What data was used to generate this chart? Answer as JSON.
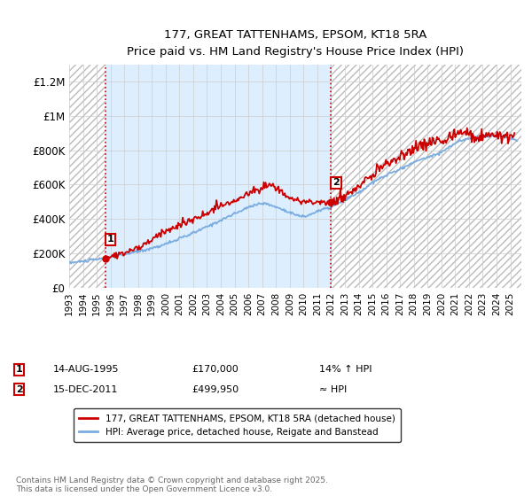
{
  "title_line1": "177, GREAT TATTENHAMS, EPSOM, KT18 5RA",
  "title_line2": "Price paid vs. HM Land Registry's House Price Index (HPI)",
  "ylabel_ticks": [
    "£0",
    "£200K",
    "£400K",
    "£600K",
    "£800K",
    "£1M",
    "£1.2M"
  ],
  "ytick_values": [
    0,
    200000,
    400000,
    600000,
    800000,
    1000000,
    1200000
  ],
  "ylim": [
    0,
    1300000
  ],
  "xlim_start": 1993.0,
  "xlim_end": 2025.8,
  "x_tick_years": [
    1993,
    1994,
    1995,
    1996,
    1997,
    1998,
    1999,
    2000,
    2001,
    2002,
    2003,
    2004,
    2005,
    2006,
    2007,
    2008,
    2009,
    2010,
    2011,
    2012,
    2013,
    2014,
    2015,
    2016,
    2017,
    2018,
    2019,
    2020,
    2021,
    2022,
    2023,
    2024,
    2025
  ],
  "purchase1_x": 1995.617,
  "purchase1_y": 170000,
  "purchase2_x": 2011.958,
  "purchase2_y": 499950,
  "hpi_color": "#7aade0",
  "price_color": "#cc0000",
  "vline_color": "#cc0000",
  "fill_color": "#ddeeff",
  "background_color": "#ffffff",
  "grid_color": "#cccccc",
  "legend_label1": "177, GREAT TATTENHAMS, EPSOM, KT18 5RA (detached house)",
  "legend_label2": "HPI: Average price, detached house, Reigate and Banstead",
  "note1_date": "14-AUG-1995",
  "note1_price": "£170,000",
  "note1_hpi": "14% ↑ HPI",
  "note2_date": "15-DEC-2011",
  "note2_price": "£499,950",
  "note2_hpi": "≈ HPI",
  "copyright": "Contains HM Land Registry data © Crown copyright and database right 2025.\nThis data is licensed under the Open Government Licence v3.0."
}
